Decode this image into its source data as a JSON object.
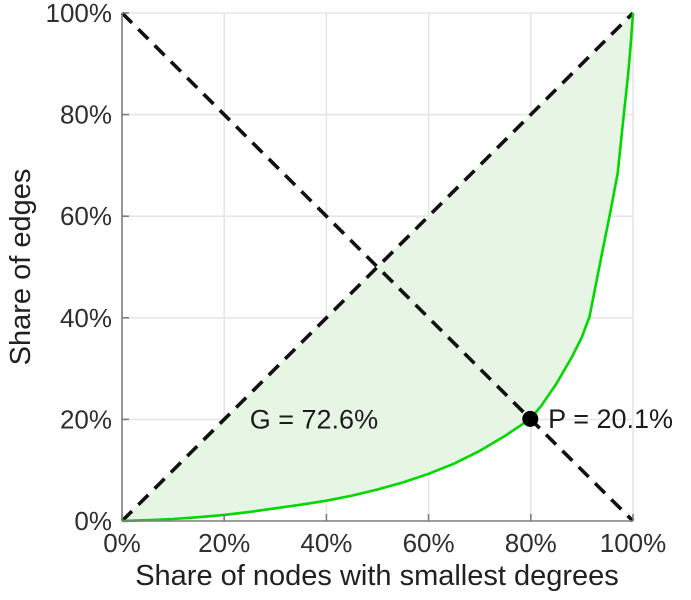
{
  "colors": {
    "curve_green": "#00d800",
    "fill_light_green": "#e7f6e4",
    "dashed_black": "#111111",
    "grid_gray": "#e6e6e6",
    "axis_gray": "#7d7d7d",
    "tick_text": "#2f2f2f",
    "label_text": "#212121",
    "point_black": "#000000",
    "background": "#ffffff"
  },
  "chart_data": {
    "type": "line",
    "title": "",
    "xlabel": "Share of nodes with smallest degrees",
    "ylabel": "Share of edges",
    "xlim": [
      0,
      100
    ],
    "ylim": [
      0,
      100
    ],
    "grid": true,
    "x_ticks": [
      "0%",
      "20%",
      "40%",
      "60%",
      "80%",
      "100%"
    ],
    "y_ticks": [
      "0%",
      "20%",
      "40%",
      "60%",
      "80%",
      "100%"
    ],
    "series": [
      {
        "name": "lorenz-curve-share-of-edges",
        "style": "solid",
        "color_key": "curve_green",
        "x": [
          0,
          5,
          10,
          15,
          20,
          25,
          30,
          35,
          40,
          45,
          50,
          55,
          60,
          65,
          70,
          75,
          79.9,
          82,
          85,
          88,
          90,
          91.5,
          94,
          95.5,
          97,
          98.2,
          99,
          99.5,
          100
        ],
        "y": [
          0,
          0.15,
          0.4,
          0.75,
          1.2,
          1.8,
          2.5,
          3.2,
          4.0,
          5.0,
          6.2,
          7.6,
          9.3,
          11.3,
          13.8,
          16.8,
          20.1,
          22.6,
          27.0,
          32.2,
          36.2,
          40.3,
          53.0,
          60.5,
          68.5,
          80.0,
          87.5,
          93.0,
          100
        ]
      },
      {
        "name": "equality-diagonal",
        "style": "dashed",
        "color_key": "dashed_black",
        "x": [
          0,
          100
        ],
        "y": [
          0,
          100
        ]
      },
      {
        "name": "anti-diagonal",
        "style": "dashed",
        "color_key": "dashed_black",
        "x": [
          0,
          100
        ],
        "y": [
          100,
          0
        ]
      }
    ],
    "shaded_area": {
      "name": "gini-area-between-diagonal-and-curve",
      "between": [
        "equality-diagonal",
        "lorenz-curve-share-of-edges"
      ],
      "color_key": "fill_light_green"
    },
    "point": {
      "x": 79.9,
      "y": 20.1
    },
    "annotations": {
      "gini": {
        "text": "G = 72.6%",
        "x": 25,
        "y": 20
      },
      "p": {
        "text": "P = 20.1%",
        "x": 83.4,
        "y": 20.1
      }
    },
    "legend": null
  }
}
